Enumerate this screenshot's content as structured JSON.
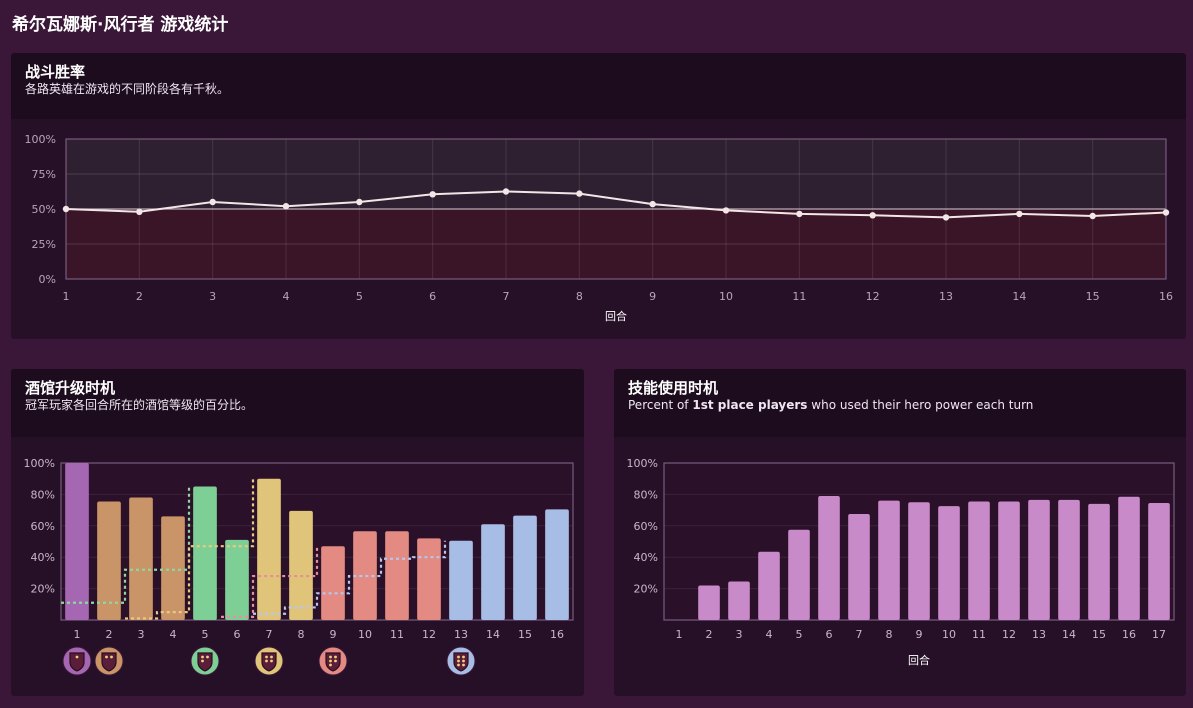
{
  "page": {
    "title": "希尔瓦娜斯·风行者 游戏统计"
  },
  "winrate_panel": {
    "title": "战斗胜率",
    "subtitle": "各路英雄在游戏的不同阶段各有千秋。"
  },
  "tavern_panel": {
    "title": "酒馆升级时机",
    "subtitle": "冠军玩家各回合所在的酒馆等级的百分比。"
  },
  "power_panel": {
    "title": "技能使用时机",
    "subtitle_pre": "Percent of ",
    "subtitle_bold": "1st place players",
    "subtitle_post": " who used their hero power each turn"
  },
  "chart_data": [
    {
      "type": "line",
      "title": "战斗胜率",
      "xlabel": "回合",
      "ylabel": "",
      "x": [
        1,
        2,
        3,
        4,
        5,
        6,
        7,
        8,
        9,
        10,
        11,
        12,
        13,
        14,
        15,
        16
      ],
      "y_ticks": [
        "0%",
        "25%",
        "50%",
        "75%",
        "100%"
      ],
      "ylim": [
        0,
        100
      ],
      "reference_line": 50,
      "series": [
        {
          "values": [
            50,
            48,
            55,
            52,
            55,
            60.5,
            62.5,
            61,
            53.5,
            49,
            46.5,
            45.5,
            44,
            46.5,
            45,
            47.5
          ]
        }
      ],
      "colors": {
        "line": "#f3e6e6",
        "upper_band": "#2e2030",
        "lower_band": "#3a1528",
        "frame": "#7a5a7e"
      }
    },
    {
      "type": "bar",
      "title": "酒馆升级时机",
      "xlabel": "",
      "ylabel": "",
      "categories": [
        "1",
        "2",
        "3",
        "4",
        "5",
        "6",
        "7",
        "8",
        "9",
        "10",
        "11",
        "12",
        "13",
        "14",
        "15",
        "16"
      ],
      "y_ticks": [
        "20%",
        "40%",
        "60%",
        "80%",
        "100%"
      ],
      "ylim": [
        0,
        100
      ],
      "values": [
        100,
        75.5,
        78,
        66,
        85,
        51,
        90,
        69.5,
        47,
        56.5,
        56.5,
        52,
        50.5,
        61,
        66.5,
        70.5
      ],
      "bar_tiers": [
        1,
        2,
        2,
        2,
        3,
        3,
        4,
        4,
        5,
        5,
        5,
        5,
        6,
        6,
        6,
        6
      ],
      "upgrade_lines": [
        {
          "tier": 3,
          "values": [
            11,
            11,
            32,
            32,
            85
          ]
        },
        {
          "tier": 4,
          "values": [
            1,
            5,
            47,
            47,
            90
          ]
        },
        {
          "tier": 5,
          "values": [
            2,
            28,
            28,
            47
          ]
        },
        {
          "tier": 6,
          "values": [
            4,
            8,
            17,
            28,
            39,
            40,
            50.5
          ]
        }
      ],
      "tier_badges": [
        {
          "tier": 1,
          "turn": 1
        },
        {
          "tier": 2,
          "turn": 2
        },
        {
          "tier": 3,
          "turn": 5
        },
        {
          "tier": 4,
          "turn": 7
        },
        {
          "tier": 5,
          "turn": 9
        },
        {
          "tier": 6,
          "turn": 13
        }
      ],
      "tier_colors": [
        "#a567b2",
        "#c99468",
        "#7ecf96",
        "#e0c47a",
        "#e38a82",
        "#a8bde6"
      ],
      "tier_line_colors": [
        "#a567b2",
        "#c99468",
        "#8fd69f",
        "#e8cb7e",
        "#e88e9a",
        "#b8c6ee"
      ]
    },
    {
      "type": "bar",
      "title": "技能使用时机",
      "xlabel": "回合",
      "ylabel": "",
      "categories": [
        "1",
        "2",
        "3",
        "4",
        "5",
        "6",
        "7",
        "8",
        "9",
        "10",
        "11",
        "12",
        "13",
        "14",
        "15",
        "16",
        "17"
      ],
      "y_ticks": [
        "20%",
        "40%",
        "60%",
        "80%",
        "100%"
      ],
      "ylim": [
        0,
        100
      ],
      "values": [
        0,
        22,
        24.5,
        43.5,
        57.5,
        79,
        67.5,
        76,
        75,
        72.5,
        75.5,
        75.5,
        76.5,
        76.5,
        74,
        78.5,
        74.5
      ],
      "colors": {
        "bar": "#c98ac9"
      }
    }
  ]
}
